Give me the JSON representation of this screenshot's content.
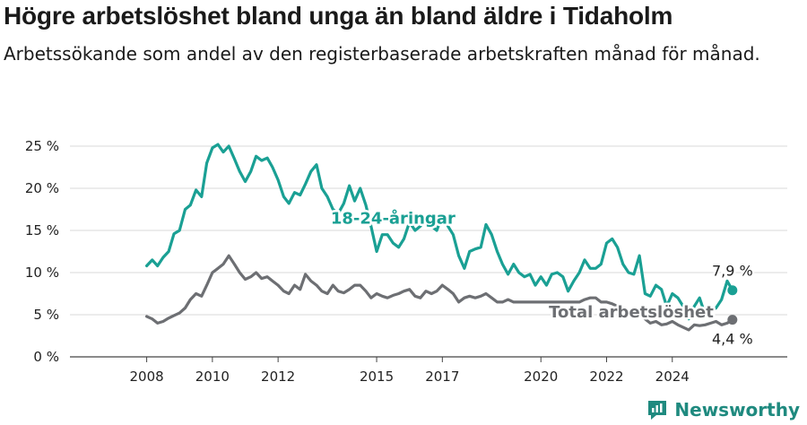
{
  "title": "Högre arbetslöshet bland unga än bland äldre i Tidaholm",
  "subtitle": "Arbetssökande som andel av den registerbaserade arbetskraften månad för månad.",
  "brand": "Newsworthy",
  "colors": {
    "youth": "#1aa094",
    "total": "#6d6f73",
    "grid": "#d9d9d9",
    "brand": "#1f8a7f"
  },
  "chart_data": {
    "type": "line",
    "title": "Högre arbetslöshet bland unga än bland äldre i Tidaholm",
    "xlabel": "",
    "ylabel": "",
    "xlim": [
      2008,
      2025
    ],
    "ylim": [
      0,
      25
    ],
    "y_ticks": [
      0,
      5,
      10,
      15,
      20,
      25
    ],
    "y_tick_labels": [
      "0 %",
      "5 %",
      "10 %",
      "15 %",
      "20 %",
      "25 %"
    ],
    "x_ticks": [
      2008,
      2010,
      2012,
      2015,
      2017,
      2020,
      2022,
      2024
    ],
    "x_tick_labels": [
      "2008",
      "2010",
      "2012",
      "2015",
      "2017",
      "2020",
      "2022",
      "2024"
    ],
    "grid": true,
    "series": [
      {
        "name": "18-24-åringar",
        "color": "#1aa094",
        "end_label": "7,9 %",
        "points": [
          [
            2008.0,
            10.8
          ],
          [
            2008.17,
            11.5
          ],
          [
            2008.33,
            10.8
          ],
          [
            2008.5,
            11.8
          ],
          [
            2008.67,
            12.5
          ],
          [
            2008.83,
            14.6
          ],
          [
            2009.0,
            15.0
          ],
          [
            2009.17,
            17.5
          ],
          [
            2009.33,
            18.0
          ],
          [
            2009.5,
            19.8
          ],
          [
            2009.67,
            19.0
          ],
          [
            2009.83,
            23.0
          ],
          [
            2010.0,
            24.8
          ],
          [
            2010.17,
            25.2
          ],
          [
            2010.33,
            24.3
          ],
          [
            2010.5,
            25.0
          ],
          [
            2010.67,
            23.5
          ],
          [
            2010.83,
            22.0
          ],
          [
            2011.0,
            20.8
          ],
          [
            2011.17,
            22.0
          ],
          [
            2011.33,
            23.8
          ],
          [
            2011.5,
            23.3
          ],
          [
            2011.67,
            23.6
          ],
          [
            2011.83,
            22.5
          ],
          [
            2012.0,
            21.0
          ],
          [
            2012.17,
            19.0
          ],
          [
            2012.33,
            18.2
          ],
          [
            2012.5,
            19.5
          ],
          [
            2012.67,
            19.2
          ],
          [
            2012.83,
            20.5
          ],
          [
            2013.0,
            22.0
          ],
          [
            2013.17,
            22.8
          ],
          [
            2013.33,
            20.0
          ],
          [
            2013.5,
            19.0
          ],
          [
            2013.67,
            17.5
          ],
          [
            2013.83,
            17.0
          ],
          [
            2014.0,
            18.2
          ],
          [
            2014.17,
            20.3
          ],
          [
            2014.33,
            18.5
          ],
          [
            2014.5,
            20.0
          ],
          [
            2014.67,
            18.0
          ],
          [
            2014.83,
            15.5
          ],
          [
            2015.0,
            12.5
          ],
          [
            2015.17,
            14.5
          ],
          [
            2015.33,
            14.5
          ],
          [
            2015.5,
            13.5
          ],
          [
            2015.67,
            13.0
          ],
          [
            2015.83,
            14.0
          ],
          [
            2016.0,
            16.0
          ],
          [
            2016.17,
            15.0
          ],
          [
            2016.33,
            15.5
          ],
          [
            2016.5,
            16.5
          ],
          [
            2016.67,
            15.5
          ],
          [
            2016.83,
            15.0
          ],
          [
            2017.0,
            16.8
          ],
          [
            2017.17,
            15.5
          ],
          [
            2017.33,
            14.5
          ],
          [
            2017.5,
            12.0
          ],
          [
            2017.67,
            10.5
          ],
          [
            2017.83,
            12.5
          ],
          [
            2018.0,
            12.8
          ],
          [
            2018.17,
            13.0
          ],
          [
            2018.33,
            15.7
          ],
          [
            2018.5,
            14.5
          ],
          [
            2018.67,
            12.5
          ],
          [
            2018.83,
            11.0
          ],
          [
            2019.0,
            9.8
          ],
          [
            2019.17,
            11.0
          ],
          [
            2019.33,
            10.0
          ],
          [
            2019.5,
            9.5
          ],
          [
            2019.67,
            9.8
          ],
          [
            2019.83,
            8.5
          ],
          [
            2020.0,
            9.5
          ],
          [
            2020.17,
            8.5
          ],
          [
            2020.33,
            9.8
          ],
          [
            2020.5,
            10.0
          ],
          [
            2020.67,
            9.5
          ],
          [
            2020.83,
            7.8
          ],
          [
            2021.0,
            9.0
          ],
          [
            2021.17,
            10.0
          ],
          [
            2021.33,
            11.5
          ],
          [
            2021.5,
            10.5
          ],
          [
            2021.67,
            10.5
          ],
          [
            2021.83,
            11.0
          ],
          [
            2022.0,
            13.5
          ],
          [
            2022.17,
            14.0
          ],
          [
            2022.33,
            13.0
          ],
          [
            2022.5,
            11.0
          ],
          [
            2022.67,
            10.0
          ],
          [
            2022.83,
            9.8
          ],
          [
            2023.0,
            12.0
          ],
          [
            2023.17,
            7.5
          ],
          [
            2023.33,
            7.2
          ],
          [
            2023.5,
            8.5
          ],
          [
            2023.67,
            8.0
          ],
          [
            2023.83,
            6.0
          ],
          [
            2024.0,
            7.5
          ],
          [
            2024.17,
            7.0
          ],
          [
            2024.33,
            6.0
          ],
          [
            2024.5,
            4.5
          ],
          [
            2024.67,
            6.0
          ],
          [
            2024.83,
            7.0
          ],
          [
            2025.0,
            5.0
          ],
          [
            2025.17,
            5.5
          ],
          [
            2025.33,
            5.8
          ],
          [
            2025.5,
            6.8
          ],
          [
            2025.67,
            9.0
          ],
          [
            2025.83,
            7.9
          ]
        ]
      },
      {
        "name": "Total arbetslöshet",
        "color": "#6d6f73",
        "end_label": "4,4 %",
        "points": [
          [
            2008.0,
            4.8
          ],
          [
            2008.17,
            4.5
          ],
          [
            2008.33,
            4.0
          ],
          [
            2008.5,
            4.2
          ],
          [
            2008.67,
            4.6
          ],
          [
            2008.83,
            4.9
          ],
          [
            2009.0,
            5.2
          ],
          [
            2009.17,
            5.8
          ],
          [
            2009.33,
            6.8
          ],
          [
            2009.5,
            7.5
          ],
          [
            2009.67,
            7.2
          ],
          [
            2009.83,
            8.5
          ],
          [
            2010.0,
            10.0
          ],
          [
            2010.17,
            10.5
          ],
          [
            2010.33,
            11.0
          ],
          [
            2010.5,
            12.0
          ],
          [
            2010.67,
            11.0
          ],
          [
            2010.83,
            10.0
          ],
          [
            2011.0,
            9.2
          ],
          [
            2011.17,
            9.5
          ],
          [
            2011.33,
            10.0
          ],
          [
            2011.5,
            9.3
          ],
          [
            2011.67,
            9.5
          ],
          [
            2011.83,
            9.0
          ],
          [
            2012.0,
            8.5
          ],
          [
            2012.17,
            7.8
          ],
          [
            2012.33,
            7.5
          ],
          [
            2012.5,
            8.5
          ],
          [
            2012.67,
            8.0
          ],
          [
            2012.83,
            9.8
          ],
          [
            2013.0,
            9.0
          ],
          [
            2013.17,
            8.5
          ],
          [
            2013.33,
            7.8
          ],
          [
            2013.5,
            7.5
          ],
          [
            2013.67,
            8.5
          ],
          [
            2013.83,
            7.8
          ],
          [
            2014.0,
            7.6
          ],
          [
            2014.17,
            8.0
          ],
          [
            2014.33,
            8.5
          ],
          [
            2014.5,
            8.5
          ],
          [
            2014.67,
            7.8
          ],
          [
            2014.83,
            7.0
          ],
          [
            2015.0,
            7.5
          ],
          [
            2015.17,
            7.2
          ],
          [
            2015.33,
            7.0
          ],
          [
            2015.5,
            7.3
          ],
          [
            2015.67,
            7.5
          ],
          [
            2015.83,
            7.8
          ],
          [
            2016.0,
            8.0
          ],
          [
            2016.17,
            7.2
          ],
          [
            2016.33,
            7.0
          ],
          [
            2016.5,
            7.8
          ],
          [
            2016.67,
            7.5
          ],
          [
            2016.83,
            7.8
          ],
          [
            2017.0,
            8.5
          ],
          [
            2017.17,
            8.0
          ],
          [
            2017.33,
            7.5
          ],
          [
            2017.5,
            6.5
          ],
          [
            2017.67,
            7.0
          ],
          [
            2017.83,
            7.2
          ],
          [
            2018.0,
            7.0
          ],
          [
            2018.17,
            7.2
          ],
          [
            2018.33,
            7.5
          ],
          [
            2018.5,
            7.0
          ],
          [
            2018.67,
            6.5
          ],
          [
            2018.83,
            6.5
          ],
          [
            2019.0,
            6.8
          ],
          [
            2019.17,
            6.5
          ],
          [
            2019.33,
            6.5
          ],
          [
            2019.5,
            6.5
          ],
          [
            2019.67,
            6.5
          ],
          [
            2019.83,
            6.5
          ],
          [
            2020.0,
            6.5
          ],
          [
            2020.17,
            6.5
          ],
          [
            2020.33,
            6.5
          ],
          [
            2020.5,
            6.5
          ],
          [
            2020.67,
            6.5
          ],
          [
            2020.83,
            6.5
          ],
          [
            2021.0,
            6.5
          ],
          [
            2021.17,
            6.5
          ],
          [
            2021.33,
            6.8
          ],
          [
            2021.5,
            7.0
          ],
          [
            2021.67,
            7.0
          ],
          [
            2021.83,
            6.5
          ],
          [
            2022.0,
            6.5
          ],
          [
            2022.17,
            6.3
          ],
          [
            2022.33,
            6.0
          ],
          [
            2022.5,
            5.5
          ],
          [
            2022.67,
            5.0
          ],
          [
            2022.83,
            5.0
          ],
          [
            2023.0,
            5.0
          ],
          [
            2023.17,
            4.5
          ],
          [
            2023.33,
            4.0
          ],
          [
            2023.5,
            4.2
          ],
          [
            2023.67,
            3.8
          ],
          [
            2023.83,
            3.9
          ],
          [
            2024.0,
            4.2
          ],
          [
            2024.17,
            3.8
          ],
          [
            2024.33,
            3.5
          ],
          [
            2024.5,
            3.2
          ],
          [
            2024.67,
            3.8
          ],
          [
            2024.83,
            3.7
          ],
          [
            2025.0,
            3.8
          ],
          [
            2025.17,
            4.0
          ],
          [
            2025.33,
            4.2
          ],
          [
            2025.5,
            3.8
          ],
          [
            2025.67,
            4.0
          ],
          [
            2025.83,
            4.4
          ]
        ]
      }
    ]
  }
}
